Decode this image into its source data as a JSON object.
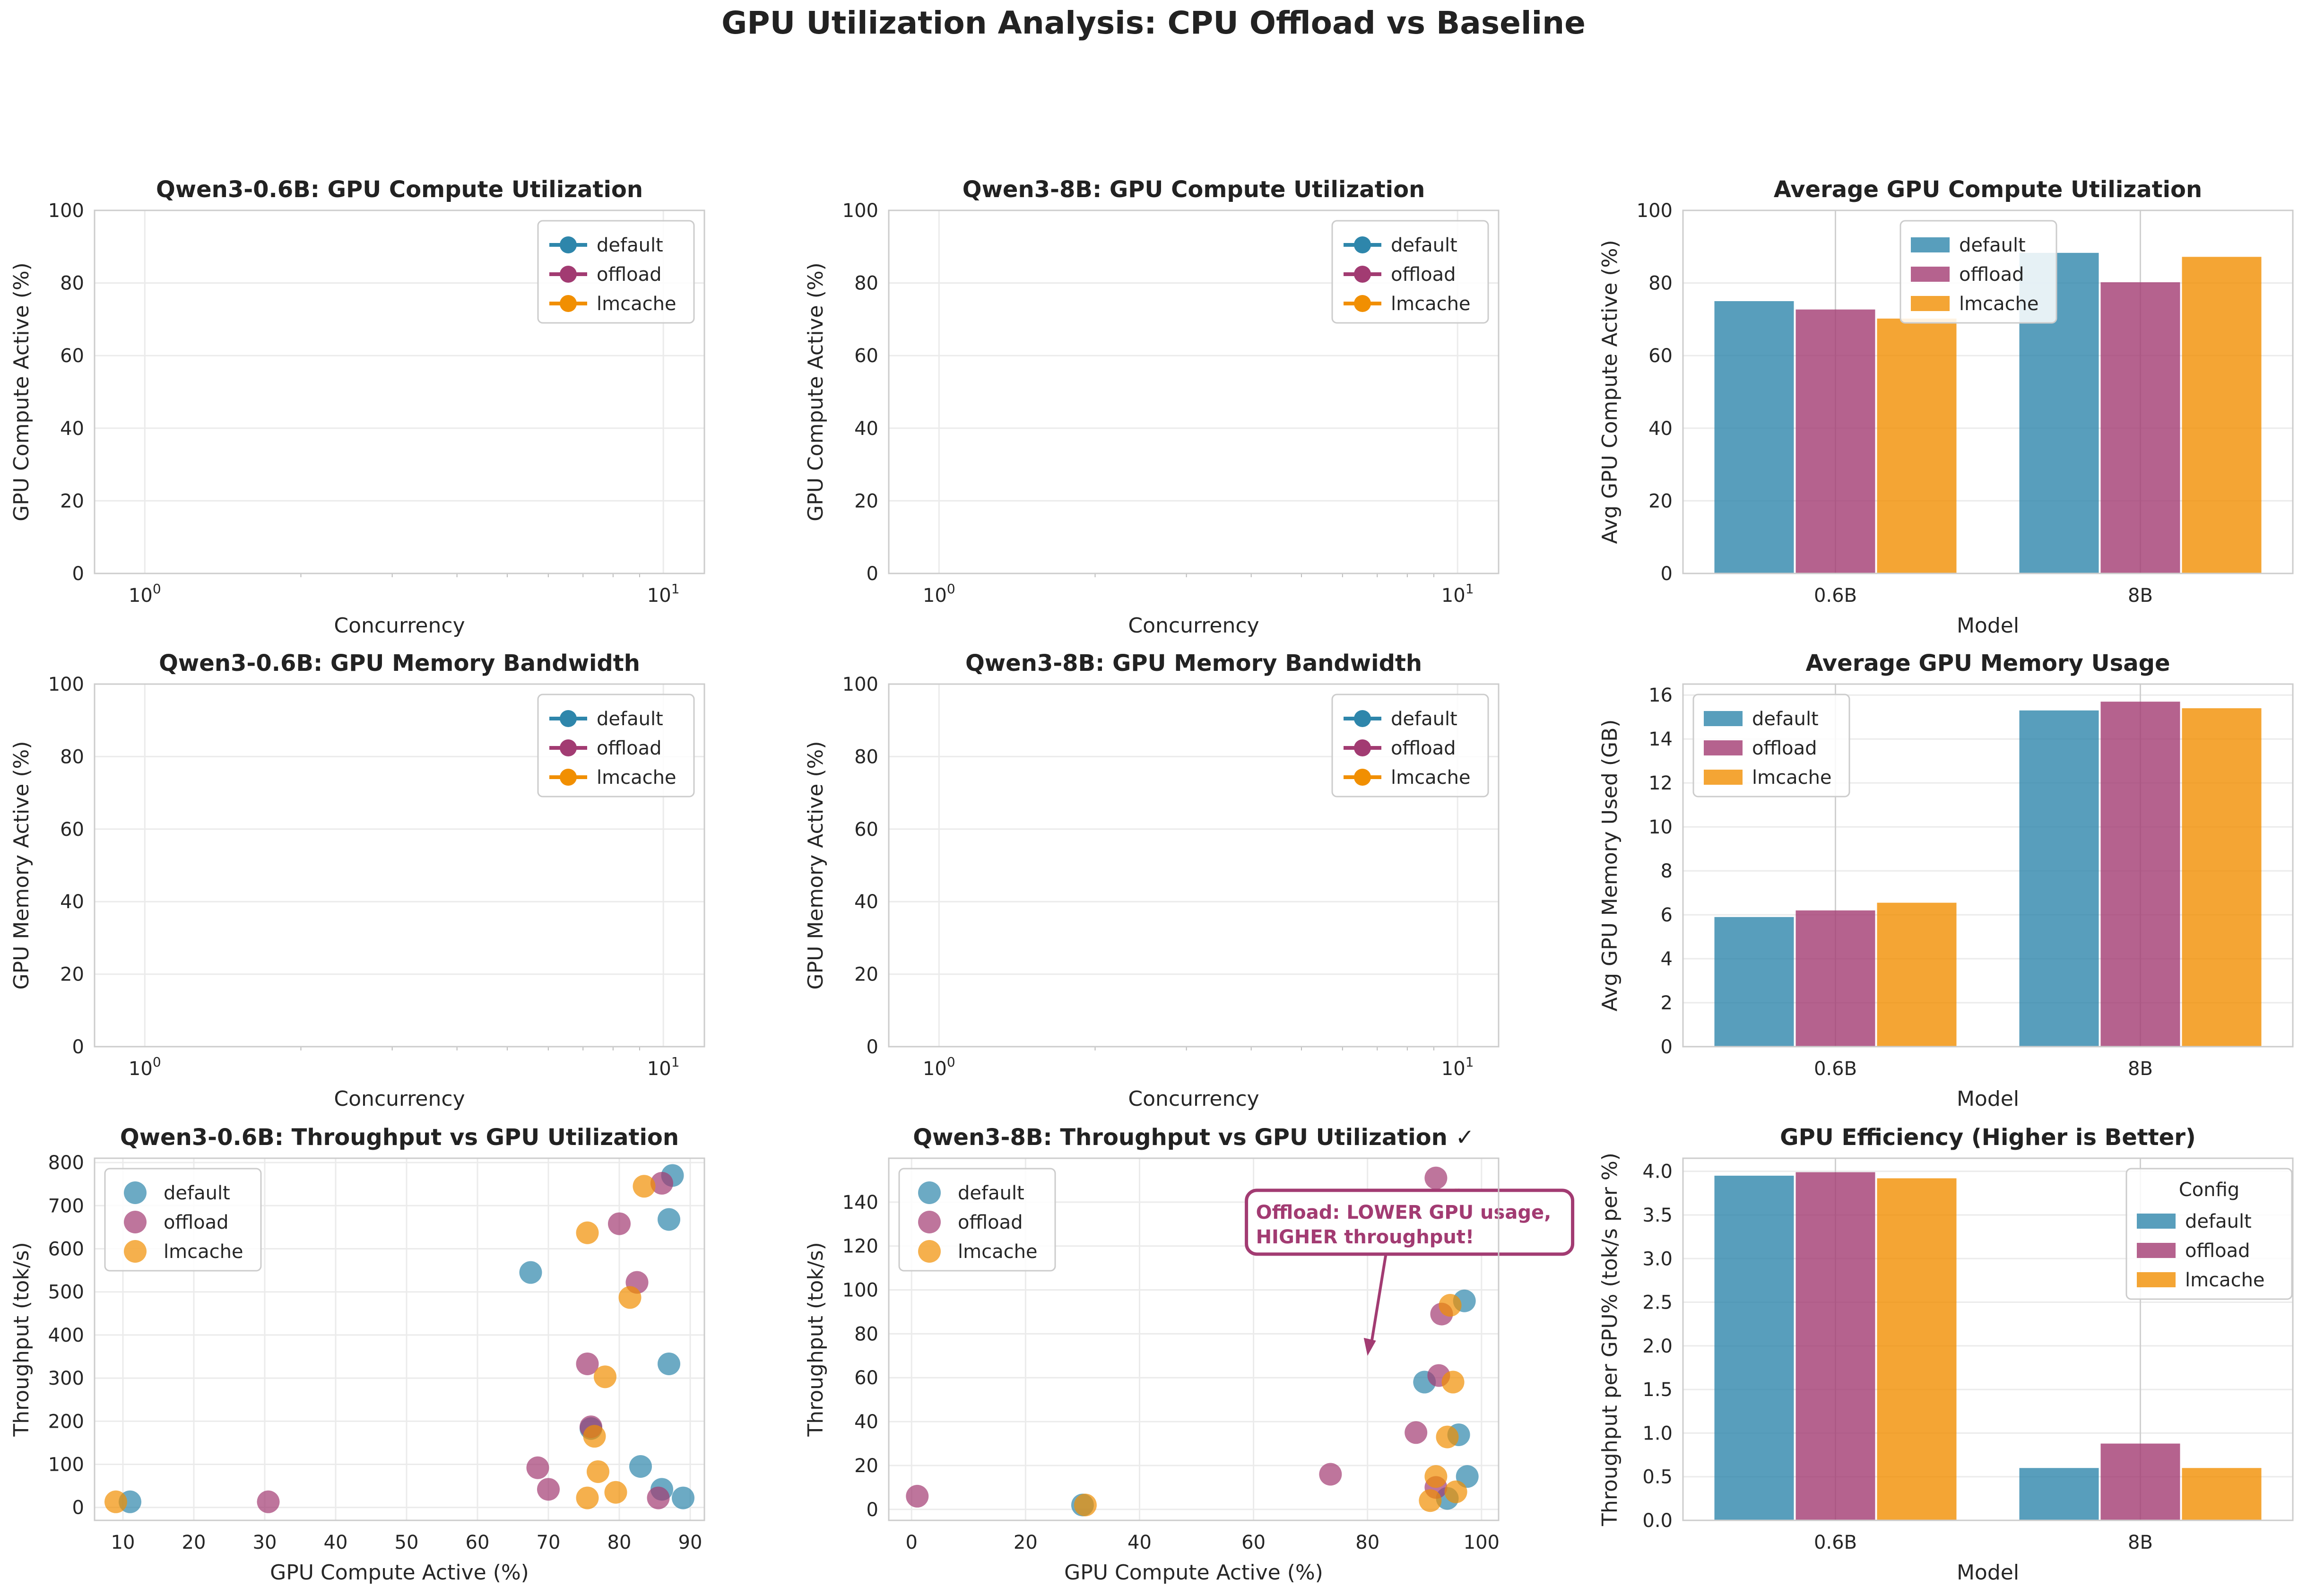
{
  "figure_title": "GPU Utilization Analysis: CPU Offload vs Baseline",
  "colors": {
    "default": "#2E86AB",
    "offload": "#A23B72",
    "lmcache": "#F18F01"
  },
  "chart_data": [
    {
      "type": "line",
      "title": "Qwen3-0.6B: GPU Compute Utilization",
      "xlabel": "Concurrency",
      "ylabel": "GPU Compute Active (%)",
      "xscale": "log",
      "xlim": [
        0.8,
        12
      ],
      "ylim": [
        0,
        100
      ],
      "xticks": [
        {
          "value": 1,
          "label": "10^0"
        },
        {
          "value": 10,
          "label": "10^1"
        }
      ],
      "yticks": [
        0,
        20,
        40,
        60,
        80,
        100
      ],
      "grid": true,
      "legend": "top-right",
      "series": [
        {
          "name": "default",
          "points": []
        },
        {
          "name": "offload",
          "points": []
        },
        {
          "name": "lmcache",
          "points": []
        }
      ]
    },
    {
      "type": "line",
      "title": "Qwen3-8B: GPU Compute Utilization",
      "xlabel": "Concurrency",
      "ylabel": "GPU Compute Active (%)",
      "xscale": "log",
      "xlim": [
        0.8,
        12
      ],
      "ylim": [
        0,
        100
      ],
      "xticks": [
        {
          "value": 1,
          "label": "10^0"
        },
        {
          "value": 10,
          "label": "10^1"
        }
      ],
      "yticks": [
        0,
        20,
        40,
        60,
        80,
        100
      ],
      "grid": true,
      "legend": "top-right",
      "series": [
        {
          "name": "default",
          "points": []
        },
        {
          "name": "offload",
          "points": []
        },
        {
          "name": "lmcache",
          "points": []
        }
      ]
    },
    {
      "type": "bar",
      "title": "Average GPU Compute Utilization",
      "xlabel": "Model",
      "ylabel": "Avg GPU Compute Active (%)",
      "categories": [
        "0.6B",
        "8B"
      ],
      "ylim": [
        0,
        100
      ],
      "yticks": [
        0,
        20,
        40,
        60,
        80,
        100
      ],
      "grid": true,
      "legend": "top-center",
      "series": [
        {
          "name": "default",
          "values": [
            75.0,
            88.3
          ]
        },
        {
          "name": "offload",
          "values": [
            72.7,
            80.2
          ]
        },
        {
          "name": "lmcache",
          "values": [
            70.2,
            87.2
          ]
        }
      ]
    },
    {
      "type": "line",
      "title": "Qwen3-0.6B: GPU Memory Bandwidth",
      "xlabel": "Concurrency",
      "ylabel": "GPU Memory Active (%)",
      "xscale": "log",
      "xlim": [
        0.8,
        12
      ],
      "ylim": [
        0,
        100
      ],
      "xticks": [
        {
          "value": 1,
          "label": "10^0"
        },
        {
          "value": 10,
          "label": "10^1"
        }
      ],
      "yticks": [
        0,
        20,
        40,
        60,
        80,
        100
      ],
      "grid": true,
      "legend": "top-right",
      "series": [
        {
          "name": "default",
          "points": []
        },
        {
          "name": "offload",
          "points": []
        },
        {
          "name": "lmcache",
          "points": []
        }
      ]
    },
    {
      "type": "line",
      "title": "Qwen3-8B: GPU Memory Bandwidth",
      "xlabel": "Concurrency",
      "ylabel": "GPU Memory Active (%)",
      "xscale": "log",
      "xlim": [
        0.8,
        12
      ],
      "ylim": [
        0,
        100
      ],
      "xticks": [
        {
          "value": 1,
          "label": "10^0"
        },
        {
          "value": 10,
          "label": "10^1"
        }
      ],
      "yticks": [
        0,
        20,
        40,
        60,
        80,
        100
      ],
      "grid": true,
      "legend": "top-right",
      "series": [
        {
          "name": "default",
          "points": []
        },
        {
          "name": "offload",
          "points": []
        },
        {
          "name": "lmcache",
          "points": []
        }
      ]
    },
    {
      "type": "bar",
      "title": "Average GPU Memory Usage",
      "xlabel": "Model",
      "ylabel": "Avg GPU Memory Used (GB)",
      "categories": [
        "0.6B",
        "8B"
      ],
      "ylim": [
        0,
        16.5
      ],
      "yticks": [
        0,
        2,
        4,
        6,
        8,
        10,
        12,
        14,
        16
      ],
      "grid": true,
      "legend": "top-left",
      "series": [
        {
          "name": "default",
          "values": [
            5.9,
            15.3
          ]
        },
        {
          "name": "offload",
          "values": [
            6.2,
            15.7
          ]
        },
        {
          "name": "lmcache",
          "values": [
            6.55,
            15.4
          ]
        }
      ]
    },
    {
      "type": "scatter",
      "title": "Qwen3-0.6B: Throughput vs GPU Utilization",
      "xlabel": "GPU Compute Active (%)",
      "ylabel": "Throughput (tok/s)",
      "xlim": [
        6,
        92
      ],
      "ylim": [
        -30,
        810
      ],
      "xticks": [
        10,
        20,
        30,
        40,
        50,
        60,
        70,
        80,
        90
      ],
      "yticks": [
        0,
        100,
        200,
        300,
        400,
        500,
        600,
        700,
        800
      ],
      "grid": true,
      "legend": "top-left",
      "series": [
        {
          "name": "default",
          "points": [
            [
              11,
              13
            ],
            [
              67.5,
              545
            ],
            [
              76,
              183
            ],
            [
              83,
              95
            ],
            [
              86,
              42
            ],
            [
              87,
              668
            ],
            [
              87.5,
              770
            ],
            [
              87,
              333
            ],
            [
              89,
              22
            ]
          ]
        },
        {
          "name": "offload",
          "points": [
            [
              30.5,
              13
            ],
            [
              68.5,
              92
            ],
            [
              70,
              42
            ],
            [
              75.5,
              333
            ],
            [
              76,
              187
            ],
            [
              80,
              658
            ],
            [
              82.5,
              522
            ],
            [
              85.5,
              22
            ],
            [
              86,
              752
            ]
          ]
        },
        {
          "name": "lmcache",
          "points": [
            [
              9,
              13
            ],
            [
              75.5,
              637
            ],
            [
              75.5,
              22
            ],
            [
              76.5,
              165
            ],
            [
              77,
              83
            ],
            [
              78,
              303
            ],
            [
              79.5,
              35
            ],
            [
              81.5,
              487
            ],
            [
              83.5,
              745
            ]
          ]
        }
      ]
    },
    {
      "type": "scatter",
      "title": "Qwen3-8B: Throughput vs GPU Utilization ✓",
      "xlabel": "GPU Compute Active (%)",
      "ylabel": "Throughput (tok/s)",
      "xlim": [
        -4,
        103
      ],
      "ylim": [
        -5,
        160
      ],
      "xticks": [
        0,
        20,
        40,
        60,
        80,
        100
      ],
      "yticks": [
        0,
        20,
        40,
        60,
        80,
        100,
        120,
        140
      ],
      "grid": true,
      "legend": "top-left",
      "annotation": {
        "text": [
          "Offload: LOWER GPU usage,",
          "HIGHER throughput!"
        ],
        "xy": [
          80,
          70
        ],
        "xytext": [
          60,
          126
        ]
      },
      "series": [
        {
          "name": "default",
          "points": [
            [
              30,
              2
            ],
            [
              90,
              58
            ],
            [
              94,
              5
            ],
            [
              96,
              34
            ],
            [
              97,
              95
            ],
            [
              97.5,
              15
            ],
            [
              96.5,
              140
            ]
          ]
        },
        {
          "name": "offload",
          "points": [
            [
              1,
              6
            ],
            [
              73.5,
              16
            ],
            [
              88.5,
              35
            ],
            [
              92,
              10
            ],
            [
              92.5,
              61
            ],
            [
              93,
              89
            ],
            [
              92,
              151
            ],
            [
              96,
              141
            ]
          ]
        },
        {
          "name": "lmcache",
          "points": [
            [
              30.5,
              2
            ],
            [
              91,
              4
            ],
            [
              92,
              15
            ],
            [
              94,
              33
            ],
            [
              94.5,
              93
            ],
            [
              95,
              58
            ],
            [
              95.5,
              8
            ],
            [
              95.5,
              141
            ]
          ]
        }
      ]
    },
    {
      "type": "bar",
      "title": "GPU Efficiency (Higher is Better)",
      "xlabel": "Model",
      "ylabel": "Throughput per GPU% (tok/s per %)",
      "categories": [
        "0.6B",
        "8B"
      ],
      "ylim": [
        0,
        4.15
      ],
      "yticks": [
        0.0,
        0.5,
        1.0,
        1.5,
        2.0,
        2.5,
        3.0,
        3.5,
        4.0
      ],
      "grid": true,
      "legend": "top-right",
      "legend_title": "Config",
      "series": [
        {
          "name": "default",
          "values": [
            3.95,
            0.6
          ]
        },
        {
          "name": "offload",
          "values": [
            3.99,
            0.88
          ]
        },
        {
          "name": "lmcache",
          "values": [
            3.92,
            0.6
          ]
        }
      ]
    }
  ]
}
